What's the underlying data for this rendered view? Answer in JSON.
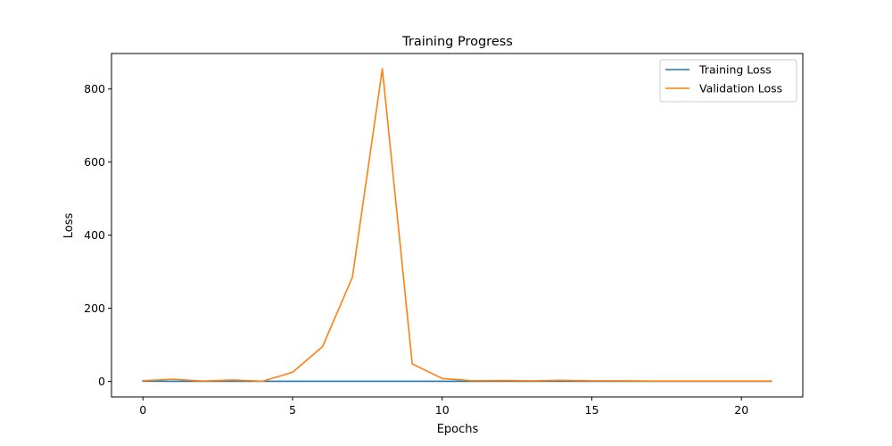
{
  "chart_data": {
    "type": "line",
    "title": "Training Progress",
    "xlabel": "Epochs",
    "ylabel": "Loss",
    "xlim": [
      -1.05,
      22.05
    ],
    "ylim": [
      -42.5,
      897
    ],
    "xticks": [
      0,
      5,
      10,
      15,
      20
    ],
    "yticks": [
      0,
      200,
      400,
      600,
      800
    ],
    "grid": false,
    "legend_position": "top-right",
    "x": [
      0,
      1,
      2,
      3,
      4,
      5,
      6,
      7,
      8,
      9,
      10,
      11,
      12,
      13,
      14,
      15,
      16,
      17,
      18,
      19,
      20,
      21
    ],
    "series": [
      {
        "name": "Training Loss",
        "color": "#1f77b4",
        "values": [
          0.5,
          0.45,
          0.42,
          0.4,
          0.38,
          0.36,
          0.35,
          0.34,
          0.33,
          0.32,
          0.31,
          0.3,
          0.3,
          0.29,
          0.29,
          0.28,
          0.28,
          0.27,
          0.27,
          0.27,
          0.26,
          0.26
        ]
      },
      {
        "name": "Validation Loss",
        "color": "#ff7f0e",
        "values": [
          2,
          6,
          1,
          4,
          0.5,
          25,
          95,
          285,
          855,
          48,
          8,
          2,
          2.5,
          1.5,
          3,
          1.5,
          1.5,
          1,
          1,
          1,
          1,
          1
        ]
      }
    ]
  }
}
